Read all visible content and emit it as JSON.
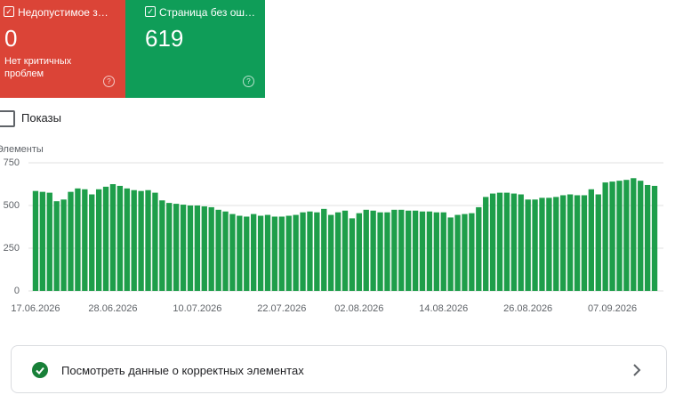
{
  "cards": [
    {
      "label": "Недопустимое з…",
      "value": "0",
      "note": "Нет критичных проблем"
    },
    {
      "label": "Страница без ош…",
      "value": "619"
    }
  ],
  "checkbox": "Показы",
  "chart_data": {
    "type": "bar",
    "y_label": "Элементы",
    "color": "#1e9e4a",
    "grid": true,
    "ylim": [
      0,
      750
    ],
    "yticks": [
      0,
      250,
      500,
      750
    ],
    "categories": [
      "17.06.2026",
      null,
      null,
      null,
      null,
      null,
      null,
      null,
      null,
      null,
      null,
      "28.06.2026",
      null,
      null,
      null,
      null,
      null,
      null,
      null,
      null,
      null,
      null,
      null,
      "10.07.2026",
      null,
      null,
      null,
      null,
      null,
      null,
      null,
      null,
      null,
      null,
      null,
      "22.07.2026",
      null,
      null,
      null,
      null,
      null,
      null,
      null,
      null,
      null,
      null,
      "02.08.2026",
      null,
      null,
      null,
      null,
      null,
      null,
      null,
      null,
      null,
      null,
      null,
      "14.08.2026",
      null,
      null,
      null,
      null,
      null,
      null,
      null,
      null,
      null,
      null,
      null,
      "26.08.2026",
      null,
      null,
      null,
      null,
      null,
      null,
      null,
      null,
      null,
      null,
      null,
      "07.09.2026",
      null,
      null,
      null,
      null,
      null,
      null
    ],
    "values": [
      585,
      580,
      575,
      525,
      535,
      580,
      600,
      595,
      565,
      595,
      610,
      625,
      615,
      600,
      590,
      585,
      590,
      575,
      530,
      515,
      510,
      505,
      500,
      500,
      495,
      490,
      475,
      465,
      450,
      440,
      435,
      450,
      440,
      445,
      435,
      435,
      440,
      445,
      460,
      465,
      460,
      480,
      445,
      460,
      470,
      425,
      455,
      475,
      470,
      460,
      460,
      475,
      475,
      470,
      470,
      465,
      465,
      460,
      460,
      430,
      445,
      450,
      455,
      490,
      550,
      570,
      575,
      575,
      570,
      565,
      535,
      535,
      545,
      545,
      550,
      560,
      565,
      560,
      560,
      595,
      565,
      635,
      640,
      645,
      650,
      660,
      645,
      620,
      615
    ]
  },
  "link": "Посмотреть данные о корректных элементах"
}
